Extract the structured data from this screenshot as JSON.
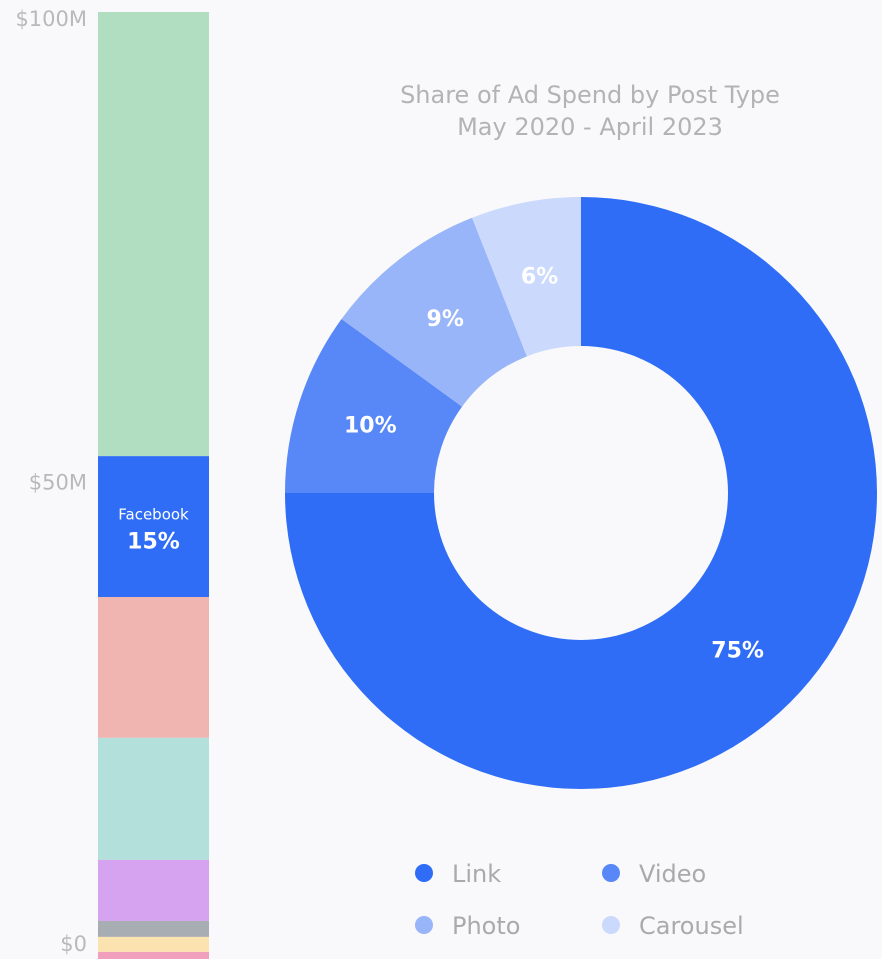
{
  "chart_data": [
    {
      "type": "bar",
      "stacked": true,
      "ylim": [
        0,
        100
      ],
      "y_unit": "$M",
      "tick_labels": [
        "$0",
        "$50M",
        "$100M"
      ],
      "segments": [
        {
          "key": "facebook",
          "label": "Facebook",
          "share_label": "15%",
          "value": 15,
          "color": "#2f6df6"
        },
        {
          "key": "s1",
          "value": 15,
          "color": "#f0b5b1"
        },
        {
          "key": "s2",
          "value": 13,
          "color": "#b3e0da"
        },
        {
          "key": "s3",
          "value": 6.5,
          "color": "#d6a3f1"
        },
        {
          "key": "s4",
          "value": 1.7,
          "color": "#a8adb3"
        },
        {
          "key": "s5",
          "value": 1.6,
          "color": "#fbe3b0"
        },
        {
          "key": "s6",
          "value": 0.9,
          "color": "#f0a0bd"
        },
        {
          "key": "s7",
          "value": 47.3,
          "color": "#b1ddc1"
        }
      ],
      "grid": false
    },
    {
      "type": "pie",
      "donut": true,
      "title": "Share of Ad Spend by Post Type",
      "subtitle": "May 2020 - April 2023",
      "categories": [
        "Link",
        "Video",
        "Photo",
        "Carousel"
      ],
      "values": [
        75,
        10,
        9,
        6
      ],
      "labels": [
        "75%",
        "10%",
        "9%",
        "6%"
      ],
      "colors": [
        "#2f6df6",
        "#5888f7",
        "#98b5f9",
        "#cad9fc"
      ],
      "legend_position": "bottom"
    }
  ]
}
